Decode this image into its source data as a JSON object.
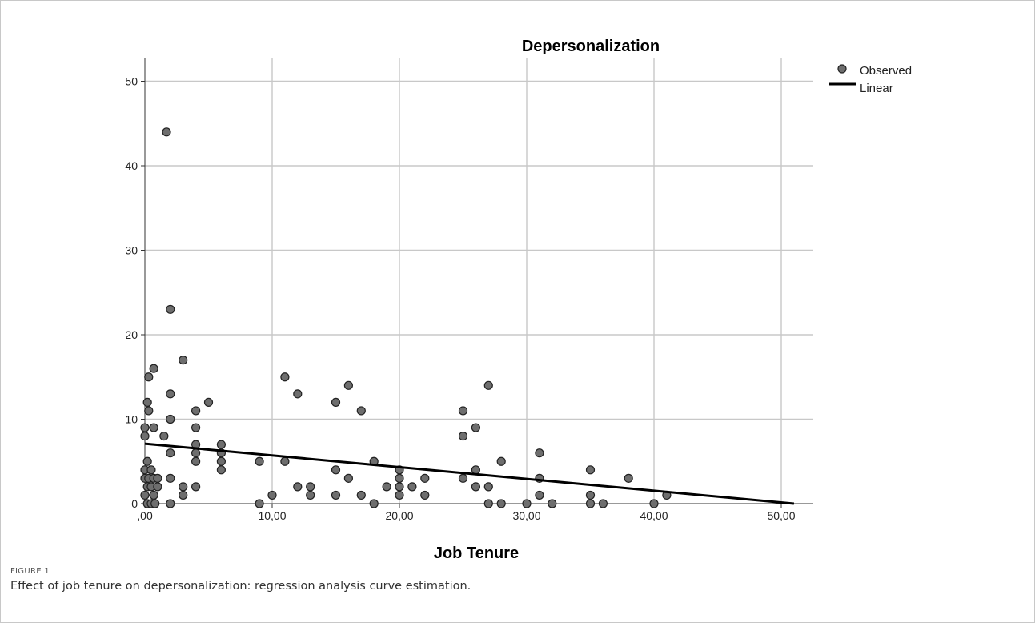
{
  "chart_data": {
    "type": "scatter",
    "title": "Depersonalization",
    "xlabel": "Job Tenure",
    "ylabel": "",
    "xlim": [
      0,
      52.5
    ],
    "ylim": [
      0,
      52.5
    ],
    "x_ticks": [
      0,
      10,
      20,
      30,
      40,
      50
    ],
    "x_tick_labels": [
      ",00",
      "10,00",
      "20,00",
      "30,00",
      "40,00",
      "50,00"
    ],
    "y_ticks": [
      0,
      10,
      20,
      30,
      40,
      50
    ],
    "y_tick_labels": [
      "0",
      "10",
      "20",
      "30",
      "40",
      "50"
    ],
    "grid": true,
    "legend_position": "top-right",
    "legend": [
      "Observed",
      "Linear"
    ],
    "series": [
      {
        "name": "Observed",
        "marker": "circle",
        "color": "#6e6e6e",
        "points": [
          [
            0,
            1
          ],
          [
            0,
            3
          ],
          [
            0,
            4
          ],
          [
            0,
            8
          ],
          [
            0,
            9
          ],
          [
            0.2,
            0
          ],
          [
            0.2,
            2
          ],
          [
            0.2,
            5
          ],
          [
            0.2,
            12
          ],
          [
            0.3,
            3
          ],
          [
            0.3,
            11
          ],
          [
            0.3,
            15
          ],
          [
            0.5,
            0
          ],
          [
            0.5,
            2
          ],
          [
            0.5,
            4
          ],
          [
            0.7,
            1
          ],
          [
            0.7,
            3
          ],
          [
            0.7,
            9
          ],
          [
            0.7,
            16
          ],
          [
            0.8,
            0
          ],
          [
            1,
            2
          ],
          [
            1,
            3
          ],
          [
            1.5,
            8
          ],
          [
            1.7,
            44
          ],
          [
            2,
            0
          ],
          [
            2,
            3
          ],
          [
            2,
            6
          ],
          [
            2,
            10
          ],
          [
            2,
            13
          ],
          [
            2,
            23
          ],
          [
            3,
            1
          ],
          [
            3,
            2
          ],
          [
            3,
            17
          ],
          [
            4,
            2
          ],
          [
            4,
            5
          ],
          [
            4,
            6
          ],
          [
            4,
            7
          ],
          [
            4,
            9
          ],
          [
            4,
            11
          ],
          [
            5,
            12
          ],
          [
            6,
            4
          ],
          [
            6,
            5
          ],
          [
            6,
            6
          ],
          [
            6,
            7
          ],
          [
            9,
            0
          ],
          [
            9,
            5
          ],
          [
            10,
            1
          ],
          [
            11,
            5
          ],
          [
            11,
            15
          ],
          [
            12,
            2
          ],
          [
            12,
            13
          ],
          [
            13,
            1
          ],
          [
            13,
            2
          ],
          [
            15,
            1
          ],
          [
            15,
            4
          ],
          [
            15,
            12
          ],
          [
            16,
            3
          ],
          [
            16,
            14
          ],
          [
            17,
            1
          ],
          [
            17,
            11
          ],
          [
            18,
            0
          ],
          [
            18,
            5
          ],
          [
            19,
            2
          ],
          [
            20,
            1
          ],
          [
            20,
            2
          ],
          [
            20,
            3
          ],
          [
            20,
            4
          ],
          [
            21,
            2
          ],
          [
            22,
            1
          ],
          [
            22,
            3
          ],
          [
            25,
            3
          ],
          [
            25,
            8
          ],
          [
            25,
            11
          ],
          [
            26,
            2
          ],
          [
            26,
            4
          ],
          [
            26,
            9
          ],
          [
            27,
            0
          ],
          [
            27,
            2
          ],
          [
            27,
            14
          ],
          [
            28,
            0
          ],
          [
            28,
            5
          ],
          [
            30,
            0
          ],
          [
            31,
            1
          ],
          [
            31,
            3
          ],
          [
            31,
            6
          ],
          [
            32,
            0
          ],
          [
            35,
            0
          ],
          [
            35,
            1
          ],
          [
            35,
            4
          ],
          [
            36,
            0
          ],
          [
            38,
            3
          ],
          [
            40,
            0
          ],
          [
            41,
            1
          ]
        ]
      },
      {
        "name": "Linear",
        "type": "line",
        "color": "#000000",
        "x": [
          0,
          51
        ],
        "y": [
          7.1,
          0
        ]
      }
    ]
  },
  "figure_label": "FIGURE 1",
  "caption": "Effect of job tenure on depersonalization: regression analysis curve estimation."
}
